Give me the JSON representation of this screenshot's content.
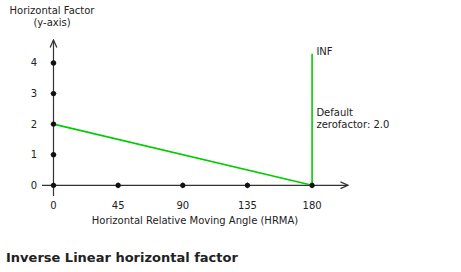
{
  "chart_data": {
    "type": "line",
    "title": "Inverse Linear horizontal factor",
    "xlabel": "Horizontal Relative Moving Angle (HRMA)",
    "ylabel": "Horizontal Factor\n(y-axis)",
    "xlim": [
      -8,
      205
    ],
    "ylim": [
      -0.35,
      4.75
    ],
    "xticks": [
      0,
      45,
      90,
      135,
      180
    ],
    "yticks": [
      0,
      1,
      2,
      3,
      4
    ],
    "series": [
      {
        "type": "line",
        "color": "#00cc00",
        "x": [
          0,
          180
        ],
        "values": [
          2,
          0
        ]
      },
      {
        "type": "line",
        "color": "#00cc00",
        "x": [
          180,
          180
        ],
        "values": [
          0,
          4.3
        ]
      },
      {
        "type": "scatter",
        "color": "#111111",
        "x": [
          0,
          0,
          0,
          0,
          0,
          45,
          90,
          135,
          180
        ],
        "values": [
          0,
          1,
          2,
          3,
          4,
          0,
          0,
          0,
          0
        ]
      }
    ],
    "annotations": [
      {
        "text": "INF",
        "x": 183,
        "y": 4.55
      },
      {
        "text": "Default\nzerofactor: 2.0",
        "x": 183,
        "y": 2.55
      }
    ]
  }
}
